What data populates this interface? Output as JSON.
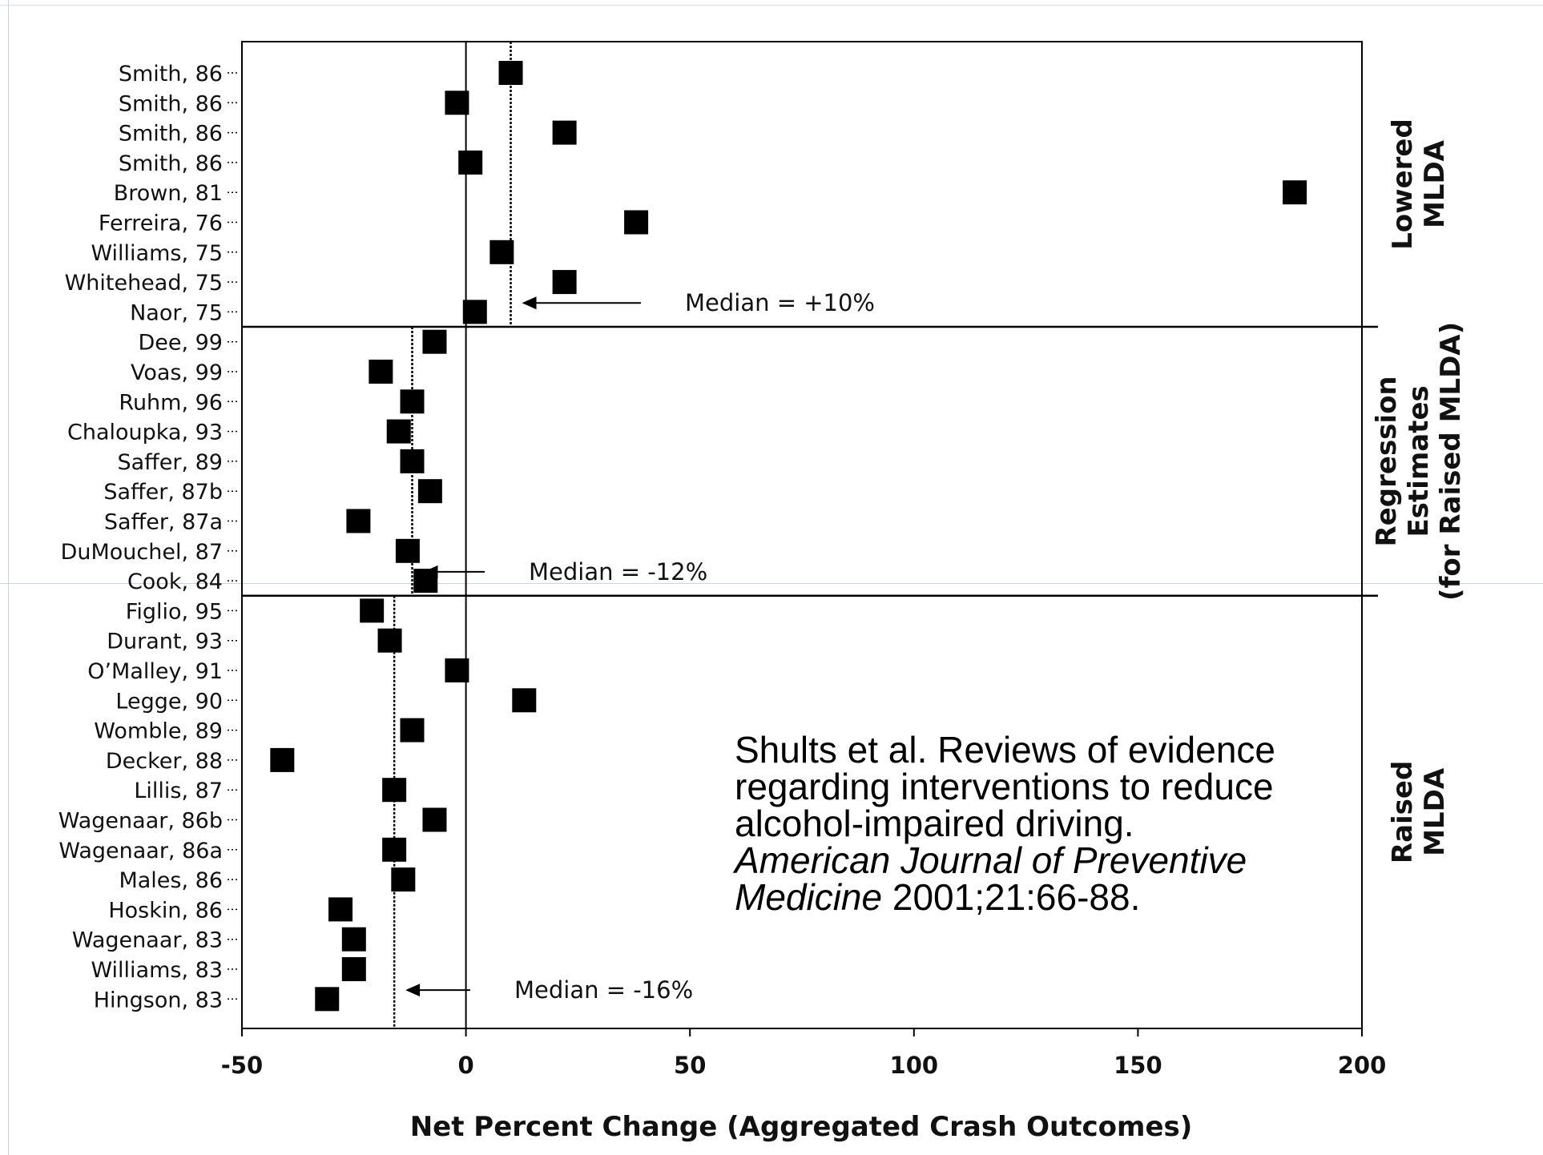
{
  "chart_data": {
    "type": "scatter",
    "xlabel": "Net Percent Change (Aggregated Crash Outcomes)",
    "xlim": [
      -50,
      200
    ],
    "xticks": [
      -50,
      0,
      50,
      100,
      150,
      200
    ],
    "tick_labels": [
      "-50",
      "0",
      "50",
      "100",
      "150",
      "200"
    ],
    "marker": "square",
    "marker_color": "#000000",
    "groups": [
      {
        "label_lines": [
          "Lowered",
          "MLDA"
        ],
        "median_value": 10,
        "median_label": "Median = +10%",
        "studies": [
          {
            "label": "Smith, 86",
            "value": 10
          },
          {
            "label": "Smith, 86",
            "value": -2
          },
          {
            "label": "Smith, 86",
            "value": 22
          },
          {
            "label": "Smith, 86",
            "value": 1
          },
          {
            "label": "Brown, 81",
            "value": 185
          },
          {
            "label": "Ferreira, 76",
            "value": 38
          },
          {
            "label": "Williams, 75",
            "value": 8
          },
          {
            "label": "Whitehead, 75",
            "value": 22
          },
          {
            "label": "Naor, 75",
            "value": 2
          }
        ]
      },
      {
        "label_lines": [
          "Regression",
          "Estimates",
          "(for Raised MLDA)"
        ],
        "median_value": -12,
        "median_label": "Median = -12%",
        "studies": [
          {
            "label": "Dee, 99",
            "value": -7
          },
          {
            "label": "Voas, 99",
            "value": -19
          },
          {
            "label": "Ruhm, 96",
            "value": -12
          },
          {
            "label": "Chaloupka, 93",
            "value": -15
          },
          {
            "label": "Saffer, 89",
            "value": -12
          },
          {
            "label": "Saffer, 87b",
            "value": -8
          },
          {
            "label": "Saffer, 87a",
            "value": -24
          },
          {
            "label": "DuMouchel, 87",
            "value": -13
          },
          {
            "label": "Cook, 84",
            "value": -9
          }
        ]
      },
      {
        "label_lines": [
          "Raised",
          "MLDA"
        ],
        "median_value": -16,
        "median_label": "Median = -16%",
        "studies": [
          {
            "label": "Figlio, 95",
            "value": -21
          },
          {
            "label": "Durant, 93",
            "value": -17
          },
          {
            "label": "O’Malley, 91",
            "value": -2
          },
          {
            "label": "Legge, 90",
            "value": 13
          },
          {
            "label": "Womble, 89",
            "value": -12
          },
          {
            "label": "Decker, 88",
            "value": -41
          },
          {
            "label": "Lillis, 87",
            "value": -16
          },
          {
            "label": "Wagenaar, 86b",
            "value": -7
          },
          {
            "label": "Wagenaar, 86a",
            "value": -16
          },
          {
            "label": "Males, 86",
            "value": -14
          },
          {
            "label": "Hoskin, 86",
            "value": -28
          },
          {
            "label": "Wagenaar, 83",
            "value": -25
          },
          {
            "label": "Williams, 83",
            "value": -25
          },
          {
            "label": "Hingson, 83",
            "value": -31
          }
        ]
      }
    ]
  },
  "citation": {
    "line1": "Shults et al. Reviews of evidence",
    "line2": "regarding interventions to reduce",
    "line3": "alcohol-impaired driving.",
    "line4": "American Journal of Preventive",
    "line5_italic": "Medicine",
    "line5_rest": " 2001;21:66-88."
  }
}
